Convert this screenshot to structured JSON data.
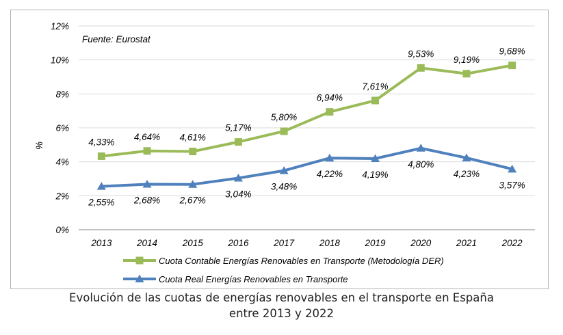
{
  "chart_data": {
    "type": "line",
    "source_note": "Fuente: Eurostat",
    "ylabel": "%",
    "xlabel": "",
    "ylim": [
      0,
      12
    ],
    "yticks": [
      "0%",
      "2%",
      "4%",
      "6%",
      "8%",
      "10%",
      "12%"
    ],
    "categories": [
      "2013",
      "2014",
      "2015",
      "2016",
      "2017",
      "2018",
      "2019",
      "2020",
      "2021",
      "2022"
    ],
    "grid": true,
    "legend_position": "bottom",
    "series": [
      {
        "name": "Cuota Contable Energías Renovables en Transporte (Metodología DER)",
        "marker": "square",
        "color": "#9bbb59",
        "values": [
          4.33,
          4.64,
          4.61,
          5.17,
          5.8,
          6.94,
          7.61,
          9.53,
          9.19,
          9.68
        ],
        "labels": [
          "4,33%",
          "4,64%",
          "4,61%",
          "5,17%",
          "5,80%",
          "6,94%",
          "7,61%",
          "9,53%",
          "9,19%",
          "9,68%"
        ]
      },
      {
        "name": "Cuota Real Energías Renovables en Transporte",
        "marker": "triangle",
        "color": "#4f81bd",
        "values": [
          2.55,
          2.68,
          2.67,
          3.04,
          3.48,
          4.22,
          4.19,
          4.8,
          4.23,
          3.57
        ],
        "labels": [
          "2,55%",
          "2,68%",
          "2,67%",
          "3,04%",
          "3,48%",
          "4,22%",
          "4,19%",
          "4,80%",
          "4,23%",
          "3,57%"
        ]
      }
    ]
  },
  "caption": {
    "line1": "Evolución de las cuotas de energías renovables en el transporte en España",
    "line2": "entre 2013 y 2022"
  }
}
